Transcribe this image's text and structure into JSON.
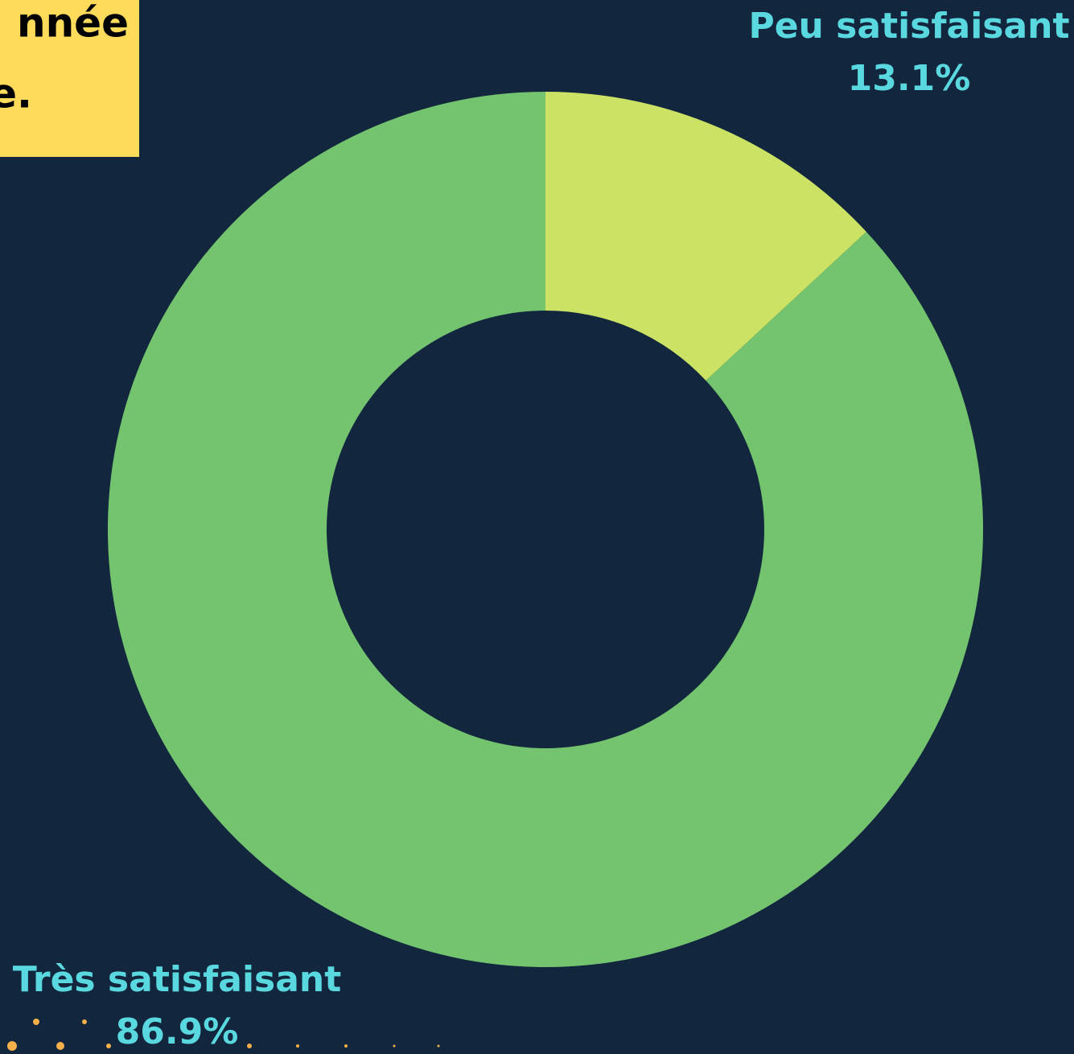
{
  "chart_data": {
    "type": "donut",
    "title_lines": [
      "nnée",
      "e."
    ],
    "categories": [
      "Peu satisfaisant",
      "Très satisfaisant"
    ],
    "values": [
      13.1,
      86.9
    ],
    "value_labels": [
      "13.1%",
      "86.9%"
    ],
    "colors": [
      "#cbe264",
      "#74c46f"
    ]
  }
}
